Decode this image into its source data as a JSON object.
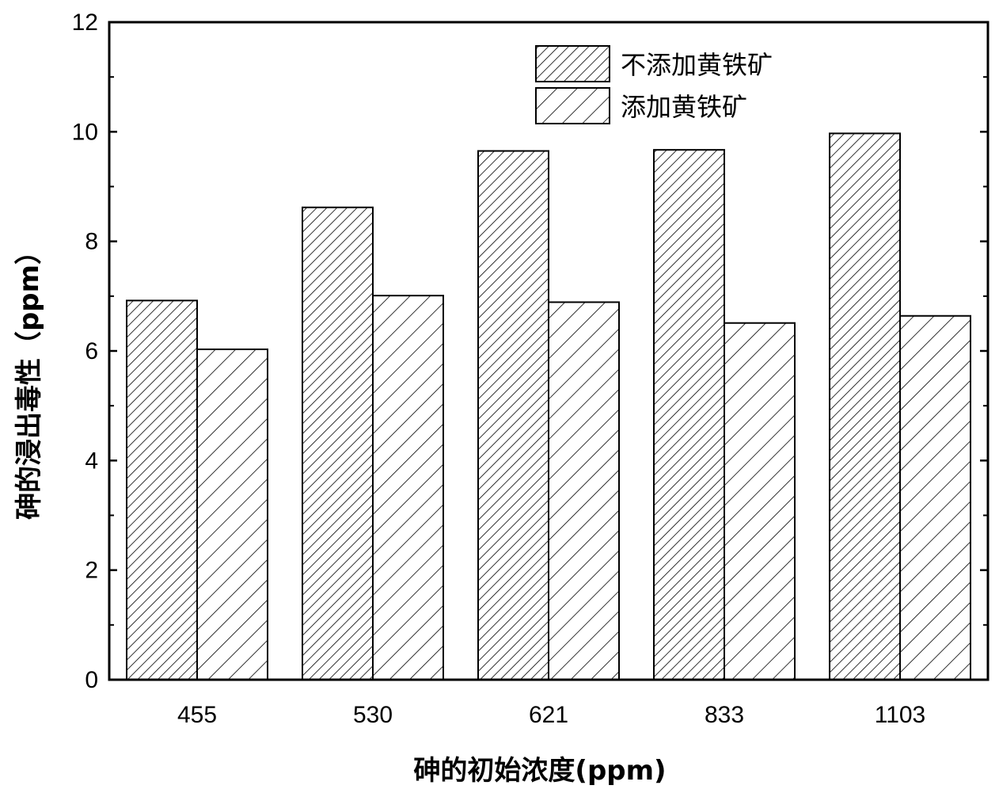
{
  "chart_data": {
    "type": "bar",
    "categories": [
      "455",
      "530",
      "621",
      "833",
      "1103"
    ],
    "series": [
      {
        "name": "不添加黄铁矿",
        "values": [
          6.92,
          8.62,
          9.65,
          9.67,
          9.97
        ],
        "pattern": "dense-diagonal"
      },
      {
        "name": "添加黄铁矿",
        "values": [
          6.03,
          7.01,
          6.89,
          6.51,
          6.64
        ],
        "pattern": "sparse-diagonal"
      }
    ],
    "xlabel": "砷的初始浓度(ppm)",
    "ylabel": "砷的浸出毒性（ppm）",
    "ylim": [
      0,
      12
    ],
    "yticks": [
      0,
      2,
      4,
      6,
      8,
      10,
      12
    ],
    "legend_position": "top-right",
    "grid": false,
    "bar_fill": "#ffffff",
    "stroke_color": "#000000"
  }
}
